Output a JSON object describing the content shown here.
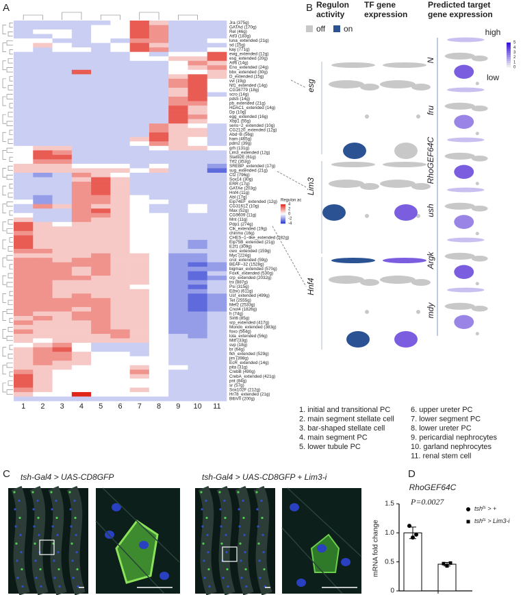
{
  "panel_labels": [
    "A",
    "B",
    "C",
    "D"
  ],
  "heatmap": {
    "rows": [
      "Jra (375g)",
      "GATAd (170g)",
      "Rel (46g)",
      "Atf3 (183g)",
      "luna_extended (21g)",
      "sd (15g)",
      "kay (771g)",
      "ewg_extended (12g)",
      "esg_extended (20g)",
      "Atf6 (14g)",
      "Eno_extended (24g)",
      "bbx_extended (30g)",
      "D_extended (15g)",
      "vvl (19g)",
      "Nf1_extended (14g)",
      "CG16779 (18g)",
      "scro (14g)",
      "pds5 (14g)",
      "pb_extended (21g)",
      "HDAC1_extended (14g)",
      "Dp (10g)",
      "egg_extended (16g)",
      "Xbp1 (55g)",
      "sens−2_extended (10g)",
      "CG2120_extended (12g)",
      "Abd−B (56g)",
      "ham (465g)",
      "pdm2 (39g)",
      "grh (131g)",
      "Lim3_extended (12g)",
      "Stat92E (61g)",
      "Trf2 (353g)",
      "SREBP_extended (17g)",
      "sug_extended (21g)",
      "Cf2 (796g)",
      "Sox14 (30g)",
      "ERR (17g)",
      "GATAe (203g)",
      "Hnf4 (11g)",
      "Abl (17g)",
      "Eip74EF_extended (12g)",
      "CG31612 (10g)",
      "Max (52g)",
      "CG9609 (11g)",
      "Mnt (11g)",
      "Pdp1 (274g)",
      "Clk_extended (19g)",
      "chinmo (16g)",
      "CHES−1−like_extended (282g)",
      "Eip75B_extended (21g)",
      "E2f1 (309g)",
      "cwo_extended (159g)",
      "Myc (224g)",
      "crol_extended (59g)",
      "BEAF−32 (1528g)",
      "bigmax_extended (570g)",
      "FoxK_extended (530g)",
      "crp_extended (2032g)",
      "trx (887g)",
      "Psi (315g)",
      "E(bx) (611g)",
      "Usf_extended (499g)",
      "Tet (2555g)",
      "Mef2 (2533g)",
      "Cnot4 (1826g)",
      "h (74g)",
      "Sirt6 (85g)",
      "srp_extended (417g)",
      "Mondo_extended (383g)",
      "foxo (564g)",
      "lola_extended (56g)",
      "Mitf (33g)",
      "svp (18g)",
      "br (64g)",
      "fkh_extended (529g)",
      "jim (398g)",
      "EcR_extended (14g)",
      "pita (31g)",
      "CrebB (490g)",
      "CrebA_extended (421g)",
      "pnt (84g)",
      "sr (57g)",
      "Sox102F (212g)",
      "Hr78_extended (21g)",
      "BtbVII (200g)"
    ],
    "columns": [
      "1",
      "2",
      "3",
      "4",
      "5",
      "6",
      "7",
      "8",
      "9",
      "10",
      "11"
    ],
    "zlim": [
      -4,
      4
    ],
    "colors": {
      "low": "#2a3ad0",
      "mid": "#ffffff",
      "high": "#e0261b"
    },
    "values": [
      [
        -1,
        -1,
        -1,
        -1,
        -1,
        0,
        3,
        1,
        -1,
        -1,
        -1
      ],
      [
        -1,
        -1,
        -1,
        -1,
        0,
        0,
        3,
        2,
        -1,
        -1,
        -1
      ],
      [
        -1,
        0,
        0,
        -1,
        0,
        0,
        3,
        2,
        -1,
        -1,
        -1
      ],
      [
        -1,
        -1,
        0,
        -1,
        0,
        0,
        3,
        2,
        -1,
        -1,
        -1
      ],
      [
        0,
        0,
        -1,
        -1,
        0,
        -1,
        2,
        2,
        -1,
        -1,
        0
      ],
      [
        0,
        1,
        0,
        -1,
        -1,
        0,
        3,
        1,
        -1,
        -1,
        -1
      ],
      [
        0,
        -1,
        0,
        0,
        -1,
        0,
        3,
        2,
        -1,
        -1,
        0
      ],
      [
        -1,
        -1,
        -1,
        -1,
        -1,
        -1,
        0,
        -1,
        0,
        0,
        3
      ],
      [
        -1,
        -1,
        -1,
        -1,
        -1,
        -1,
        0,
        0,
        1,
        1,
        3
      ],
      [
        -1,
        -1,
        -1,
        -1,
        -1,
        -1,
        -1,
        -1,
        0,
        2,
        1
      ],
      [
        -1,
        -1,
        -1,
        -1,
        -1,
        -1,
        -1,
        -1,
        0,
        1,
        2
      ],
      [
        -1,
        -1,
        -1,
        3,
        -1,
        -1,
        -1,
        -1,
        0,
        0,
        1
      ],
      [
        -1,
        -1,
        -1,
        -1,
        -1,
        -1,
        -1,
        -1,
        1,
        3,
        1
      ],
      [
        -1,
        -1,
        -1,
        -1,
        -1,
        -1,
        -1,
        -1,
        2,
        3,
        0
      ],
      [
        -1,
        -1,
        -1,
        -1,
        -1,
        -1,
        -1,
        -1,
        2,
        3,
        0
      ],
      [
        -1,
        -1,
        -1,
        -1,
        -1,
        -1,
        -1,
        -1,
        1,
        3,
        0
      ],
      [
        -1,
        -1,
        -1,
        -1,
        -1,
        -1,
        -1,
        -1,
        1,
        3,
        -1
      ],
      [
        -1,
        -1,
        -1,
        -1,
        -1,
        -1,
        -1,
        -1,
        2,
        3,
        0
      ],
      [
        -1,
        -1,
        -1,
        -1,
        -1,
        -1,
        -1,
        -1,
        2,
        2,
        0
      ],
      [
        -1,
        -1,
        -1,
        -1,
        -1,
        -1,
        -1,
        -1,
        3,
        1,
        0
      ],
      [
        -1,
        -1,
        -1,
        -1,
        -1,
        -1,
        -1,
        -1,
        3,
        1,
        0
      ],
      [
        -1,
        -1,
        -1,
        -1,
        -1,
        -1,
        -1,
        -1,
        3,
        2,
        0
      ],
      [
        -1,
        -1,
        -1,
        -1,
        -1,
        -1,
        -1,
        -1,
        3,
        1,
        0
      ],
      [
        -1,
        -1,
        -1,
        -1,
        -1,
        -1,
        -1,
        2,
        1,
        0,
        -1
      ],
      [
        -1,
        -1,
        -1,
        -1,
        -1,
        -1,
        -1,
        2,
        1,
        1,
        -1
      ],
      [
        -1,
        -1,
        -1,
        -1,
        -1,
        -1,
        -1,
        3,
        1,
        1,
        -1
      ],
      [
        -1,
        -1,
        -1,
        -1,
        -1,
        -1,
        1,
        3,
        1,
        0,
        -1
      ],
      [
        -1,
        -1,
        -1,
        -1,
        -1,
        -1,
        0,
        2,
        1,
        0,
        -1
      ],
      [
        0,
        1,
        1,
        -1,
        -1,
        -1,
        -1,
        0,
        1,
        1,
        0
      ],
      [
        0,
        3,
        2,
        -1,
        -1,
        -1,
        -1,
        -1,
        -1,
        -1,
        -1
      ],
      [
        0,
        3,
        3,
        -1,
        -1,
        -1,
        -1,
        -1,
        -1,
        -1,
        -1
      ],
      [
        0,
        2,
        2,
        -1,
        -1,
        -1,
        -1,
        -1,
        -1,
        -1,
        -1
      ],
      [
        1,
        1,
        1,
        0,
        0,
        0,
        -1,
        0,
        -1,
        -1,
        -2
      ],
      [
        1,
        1,
        1,
        1,
        1,
        1,
        0,
        1,
        -1,
        -1,
        -3
      ],
      [
        -1,
        -2,
        -1,
        2,
        1,
        0,
        -1,
        -1,
        -1,
        -1,
        -1
      ],
      [
        -1,
        -1,
        -1,
        1,
        3,
        1,
        -1,
        -1,
        -1,
        -1,
        -1
      ],
      [
        -1,
        -1,
        -1,
        2,
        3,
        1,
        -1,
        -1,
        -1,
        -1,
        -1
      ],
      [
        -1,
        -1,
        -1,
        2,
        3,
        1,
        -1,
        -1,
        -1,
        -1,
        -1
      ],
      [
        -1,
        -1,
        -1,
        2,
        3,
        1,
        -1,
        -1,
        -1,
        -1,
        -1
      ],
      [
        -1,
        -2,
        -1,
        2,
        2,
        1,
        0,
        -1,
        -1,
        -1,
        -1
      ],
      [
        0,
        -2,
        -1,
        2,
        2,
        1,
        0,
        0,
        -1,
        -1,
        -1
      ],
      [
        -1,
        2,
        1,
        2,
        1,
        1,
        0,
        -1,
        -1,
        0,
        -1
      ],
      [
        -1,
        -1,
        -1,
        2,
        3,
        1,
        0,
        -1,
        -1,
        0,
        -1
      ],
      [
        0,
        -1,
        -1,
        2,
        2,
        1,
        0,
        0,
        -1,
        -1,
        -1
      ],
      [
        1,
        -1,
        -1,
        2,
        1,
        1,
        0,
        0,
        -1,
        -1,
        -1
      ],
      [
        3,
        1,
        0,
        1,
        1,
        1,
        0,
        0,
        -1,
        -1,
        -1
      ],
      [
        3,
        1,
        1,
        1,
        1,
        1,
        0,
        0,
        -1,
        -1,
        -1
      ],
      [
        2,
        1,
        1,
        1,
        1,
        1,
        0,
        0,
        -1,
        -1,
        -1
      ],
      [
        3,
        1,
        1,
        1,
        1,
        1,
        0,
        0,
        -1,
        -1,
        -1
      ],
      [
        3,
        1,
        1,
        1,
        1,
        1,
        0,
        0,
        -1,
        -2,
        -1
      ],
      [
        3,
        1,
        1,
        1,
        1,
        1,
        0,
        0,
        -1,
        -2,
        -1
      ],
      [
        2,
        2,
        1,
        1,
        1,
        1,
        0,
        0,
        -1,
        -1,
        -1
      ],
      [
        1,
        1,
        1,
        1,
        2,
        1,
        1,
        0,
        -2,
        -2,
        -1
      ],
      [
        2,
        2,
        1,
        2,
        2,
        1,
        1,
        0,
        -2,
        -2,
        -1
      ],
      [
        2,
        2,
        2,
        2,
        2,
        1,
        1,
        0,
        -2,
        -3,
        -2
      ],
      [
        2,
        2,
        2,
        1,
        2,
        1,
        1,
        0,
        -2,
        -2,
        -2
      ],
      [
        2,
        2,
        2,
        1,
        2,
        1,
        1,
        0,
        -2,
        -3,
        -1
      ],
      [
        2,
        2,
        2,
        2,
        1,
        1,
        1,
        0,
        -2,
        -3,
        -2
      ],
      [
        2,
        2,
        1,
        1,
        1,
        1,
        1,
        0,
        -2,
        -2,
        -1
      ],
      [
        2,
        2,
        1,
        1,
        1,
        1,
        0,
        0,
        -2,
        -3,
        -1
      ],
      [
        2,
        2,
        1,
        1,
        1,
        1,
        1,
        0,
        -2,
        -2,
        -1
      ],
      [
        2,
        2,
        1,
        2,
        1,
        1,
        1,
        0,
        -2,
        -3,
        -2
      ],
      [
        2,
        2,
        2,
        2,
        2,
        1,
        1,
        0,
        -2,
        -3,
        -2
      ],
      [
        2,
        2,
        2,
        2,
        2,
        1,
        1,
        0,
        -2,
        -3,
        -2
      ],
      [
        2,
        2,
        2,
        1,
        2,
        1,
        1,
        0,
        -2,
        -3,
        -2
      ],
      [
        2,
        1,
        1,
        2,
        2,
        1,
        1,
        0,
        -2,
        -2,
        -1
      ],
      [
        1,
        2,
        1,
        2,
        2,
        1,
        1,
        0,
        -2,
        -2,
        -1
      ],
      [
        2,
        1,
        1,
        1,
        2,
        1,
        1,
        0,
        -2,
        -2,
        -1
      ],
      [
        1,
        1,
        1,
        1,
        2,
        1,
        1,
        0,
        -2,
        -2,
        -1
      ],
      [
        2,
        1,
        1,
        1,
        2,
        2,
        1,
        0,
        -2,
        -2,
        -1
      ],
      [
        1,
        1,
        1,
        1,
        1,
        2,
        1,
        0,
        -1,
        -2,
        -1
      ],
      [
        1,
        0,
        1,
        1,
        1,
        1,
        1,
        0,
        -1,
        -1,
        -1
      ],
      [
        0,
        1,
        2,
        0,
        -1,
        -1,
        -1,
        0,
        -1,
        -1,
        -1
      ],
      [
        1,
        2,
        3,
        0,
        -1,
        -1,
        -1,
        0,
        -1,
        -1,
        -1
      ],
      [
        1,
        2,
        2,
        1,
        0,
        0,
        -1,
        0,
        -1,
        -1,
        -1
      ],
      [
        1,
        2,
        2,
        1,
        0,
        0,
        0,
        0,
        -1,
        -1,
        -1
      ],
      [
        1,
        2,
        1,
        1,
        0,
        0,
        0,
        0,
        -1,
        -1,
        -1
      ],
      [
        1,
        1,
        1,
        0,
        0,
        0,
        1,
        0,
        0,
        -1,
        -1
      ],
      [
        2,
        1,
        0,
        0,
        0,
        0,
        2,
        0,
        -1,
        -1,
        -1
      ],
      [
        3,
        1,
        0,
        0,
        0,
        0,
        1,
        0,
        -1,
        -1,
        -1
      ],
      [
        3,
        1,
        0,
        0,
        0,
        0,
        0,
        0,
        -1,
        -1,
        -1
      ],
      [
        3,
        1,
        0,
        0,
        0,
        0,
        0,
        0,
        -1,
        -1,
        -1
      ],
      [
        2,
        1,
        0,
        0,
        0,
        0,
        1,
        0,
        -1,
        -1,
        -1
      ],
      [
        1,
        0,
        0,
        4,
        0,
        0,
        0,
        0,
        -1,
        -1,
        -1
      ],
      [
        -1,
        -1,
        -1,
        -1,
        -1,
        -1,
        -1,
        -1,
        -1,
        -1,
        -1
      ]
    ]
  },
  "regulon_legend": {
    "title": "Regulon ac",
    "ticks": [
      4,
      2,
      0,
      -2,
      -4
    ]
  },
  "panel_b": {
    "headers": [
      [
        "Regulon",
        "activity"
      ],
      [
        "TF gene",
        "expression"
      ],
      [
        "Predicted target",
        "gene expression"
      ]
    ],
    "legend": [
      {
        "label": "off",
        "color": "#c8c8c8"
      },
      {
        "label": "on",
        "color": "#2b5394"
      }
    ],
    "regulons": [
      "esg",
      "Lim3",
      "Hnf4"
    ],
    "targets": [
      "N",
      "fru",
      "RhoGEF64C",
      "ush",
      "Argk",
      "mdy"
    ],
    "scale": {
      "high": "high",
      "low": "low",
      "ticks": [
        5,
        4,
        3,
        2,
        1,
        0
      ]
    }
  },
  "cell_types": [
    "1. initial and transitional PC",
    "2. main segment stellate cell",
    "3. bar-shaped stellate cell",
    "4. main segment PC",
    "5. lower tubule PC",
    "6. upper ureter PC",
    "7. lower segment PC",
    "8. lower ureter PC",
    "9. pericardial nephrocytes",
    "10. garland nephrocytes",
    "11. renal stem cell"
  ],
  "panel_c": {
    "titles": [
      "tsh-Gal4 > UAS-CD8GFP",
      "tsh-Gal4 > UAS-CD8GFP + Lim3-i"
    ]
  },
  "chart_data": {
    "type": "bar",
    "title": "RhoGEF64C",
    "annotation": "P=0.0027",
    "y_label": "mRNA fold change",
    "ylim": [
      0,
      1.5
    ],
    "yticks": [
      0,
      0.5,
      {
        "value": 1,
        "label": "1.0"
      },
      {
        "value": 1.5,
        "label": "1.5"
      }
    ],
    "series": [
      {
        "name": [
          "tsh",
          "ts",
          " > +"
        ],
        "marker": "circle",
        "color": "#ffffff",
        "values": [
          1.0
        ],
        "errors": [
          0.1
        ],
        "points": [
          1.12,
          0.92,
          0.97
        ]
      },
      {
        "name": [
          "tsh",
          "ts",
          " > Lim3-i"
        ],
        "marker": "square",
        "color": "#ffffff",
        "values": [
          0.46
        ],
        "errors": [
          0.03
        ],
        "points": [
          0.47,
          0.43,
          0.48
        ]
      }
    ]
  }
}
